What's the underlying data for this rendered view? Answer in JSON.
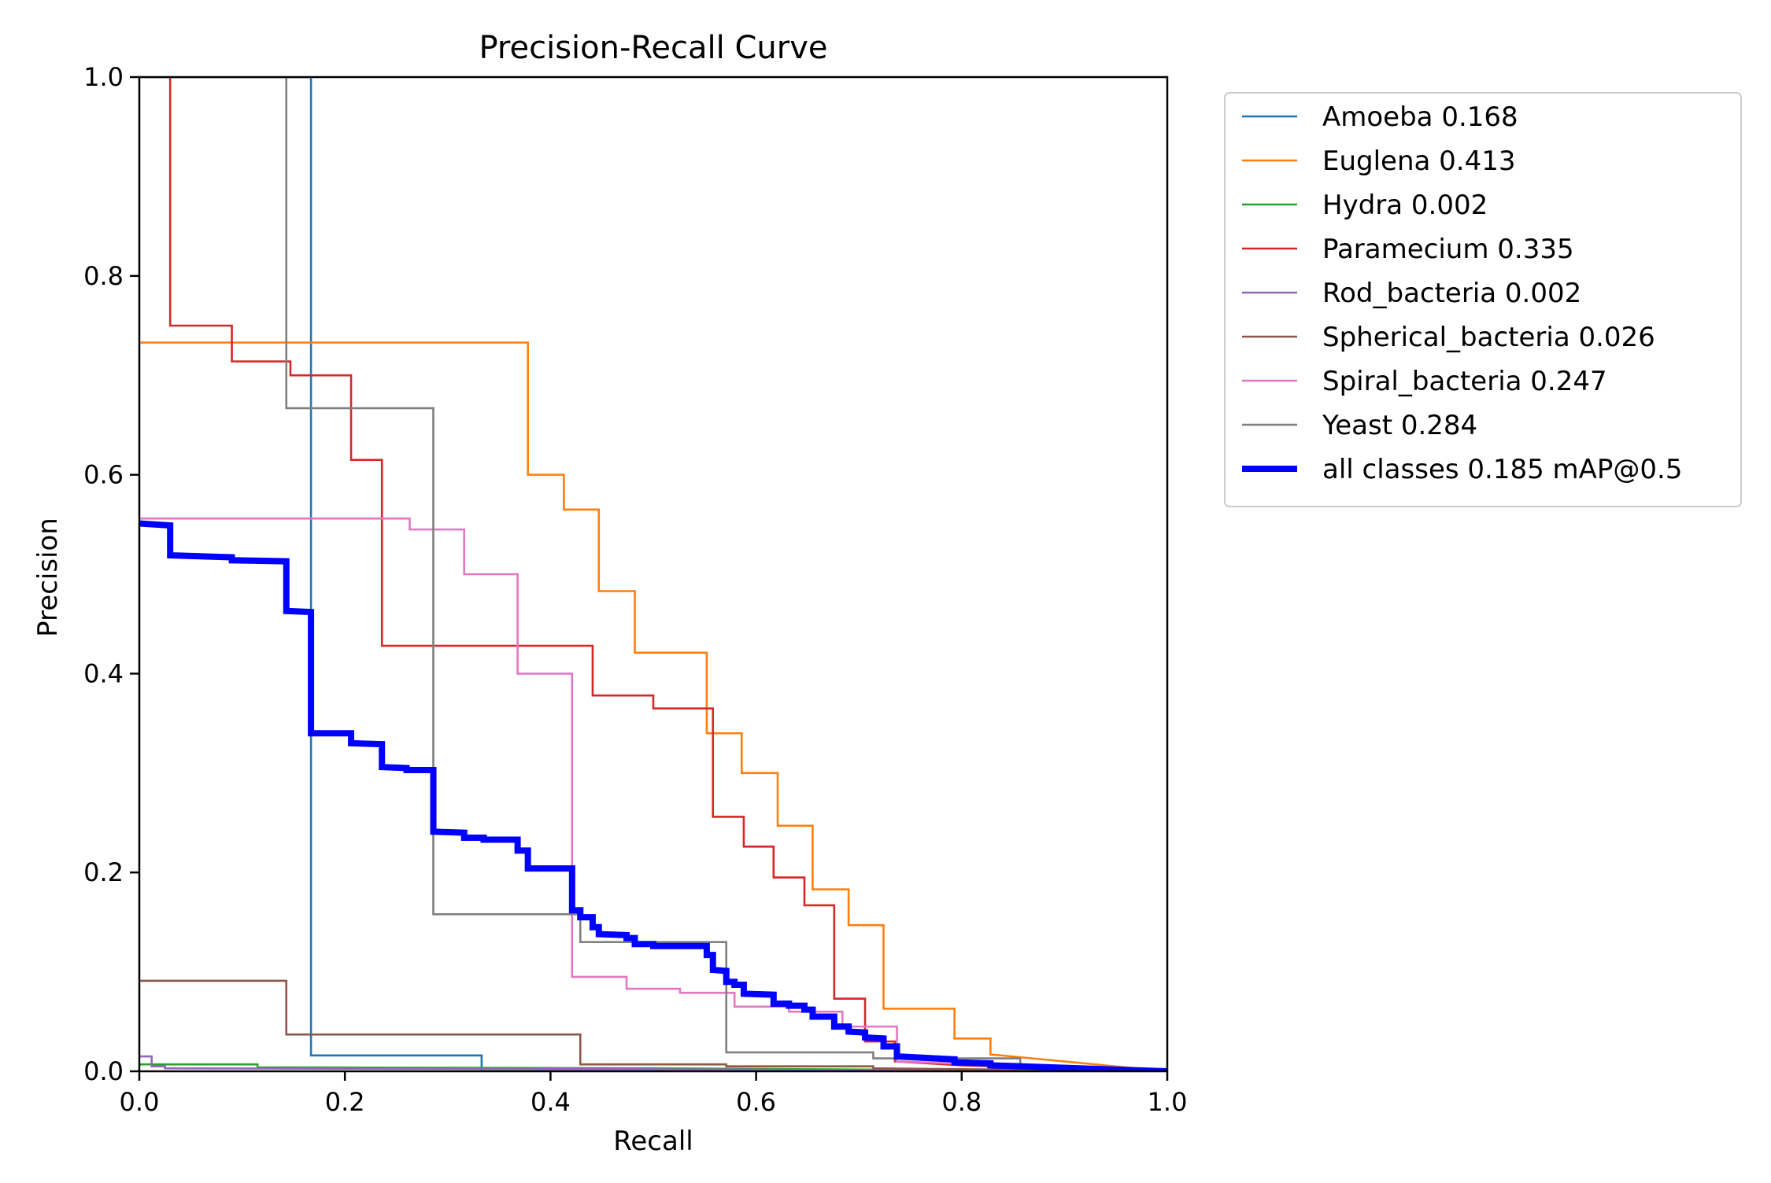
{
  "chart_data": {
    "type": "line",
    "title": "Precision-Recall Curve",
    "xlabel": "Recall",
    "ylabel": "Precision",
    "xlim": [
      0,
      1
    ],
    "ylim": [
      0,
      1
    ],
    "xticks": [
      "0.0",
      "0.2",
      "0.4",
      "0.6",
      "0.8",
      "1.0"
    ],
    "yticks": [
      "0.0",
      "0.2",
      "0.4",
      "0.6",
      "0.8",
      "1.0"
    ],
    "grid": false,
    "legend_position": "outside-top-right",
    "series": [
      {
        "name": "Amoeba 0.168",
        "color": "#1f77b4",
        "width": "thin",
        "points": [
          [
            0,
            1.0
          ],
          [
            0.167,
            1.0
          ],
          [
            0.167,
            0.016
          ],
          [
            0.333,
            0.016
          ],
          [
            0.333,
            0.0
          ],
          [
            1.0,
            0.0
          ]
        ]
      },
      {
        "name": "Euglena 0.413",
        "color": "#ff7f0e",
        "width": "thin",
        "points": [
          [
            0,
            0.733
          ],
          [
            0.378,
            0.733
          ],
          [
            0.378,
            0.6
          ],
          [
            0.413,
            0.6
          ],
          [
            0.413,
            0.565
          ],
          [
            0.447,
            0.565
          ],
          [
            0.447,
            0.483
          ],
          [
            0.482,
            0.483
          ],
          [
            0.482,
            0.421
          ],
          [
            0.552,
            0.421
          ],
          [
            0.552,
            0.34
          ],
          [
            0.586,
            0.34
          ],
          [
            0.586,
            0.3
          ],
          [
            0.621,
            0.3
          ],
          [
            0.621,
            0.247
          ],
          [
            0.655,
            0.247
          ],
          [
            0.655,
            0.183
          ],
          [
            0.69,
            0.183
          ],
          [
            0.69,
            0.147
          ],
          [
            0.724,
            0.147
          ],
          [
            0.724,
            0.063
          ],
          [
            0.793,
            0.063
          ],
          [
            0.793,
            0.033
          ],
          [
            0.828,
            0.033
          ],
          [
            0.828,
            0.017
          ],
          [
            1.0,
            0.0
          ]
        ]
      },
      {
        "name": "Hydra 0.002",
        "color": "#2ca02c",
        "width": "thin",
        "points": [
          [
            0,
            0.007
          ],
          [
            0.115,
            0.007
          ],
          [
            0.115,
            0.004
          ],
          [
            0.5,
            0.003
          ],
          [
            1.0,
            0.0
          ]
        ]
      },
      {
        "name": "Paramecium 0.335",
        "color": "#d62728",
        "width": "thin",
        "points": [
          [
            0.03,
            1.0
          ],
          [
            0.03,
            0.75
          ],
          [
            0.09,
            0.75
          ],
          [
            0.09,
            0.714
          ],
          [
            0.147,
            0.714
          ],
          [
            0.147,
            0.7
          ],
          [
            0.206,
            0.7
          ],
          [
            0.206,
            0.615
          ],
          [
            0.236,
            0.615
          ],
          [
            0.236,
            0.428
          ],
          [
            0.441,
            0.428
          ],
          [
            0.441,
            0.378
          ],
          [
            0.5,
            0.378
          ],
          [
            0.5,
            0.365
          ],
          [
            0.558,
            0.365
          ],
          [
            0.558,
            0.256
          ],
          [
            0.588,
            0.256
          ],
          [
            0.588,
            0.226
          ],
          [
            0.617,
            0.226
          ],
          [
            0.617,
            0.195
          ],
          [
            0.647,
            0.195
          ],
          [
            0.647,
            0.167
          ],
          [
            0.676,
            0.167
          ],
          [
            0.676,
            0.073
          ],
          [
            0.706,
            0.073
          ],
          [
            0.706,
            0.03
          ],
          [
            0.735,
            0.03
          ],
          [
            0.735,
            0.01
          ],
          [
            0.8,
            0.006
          ],
          [
            1.0,
            0.0
          ]
        ]
      },
      {
        "name": "Rod_bacteria 0.002",
        "color": "#9467bd",
        "width": "thin",
        "points": [
          [
            0,
            0.015
          ],
          [
            0.012,
            0.015
          ],
          [
            0.012,
            0.005
          ],
          [
            0.025,
            0.005
          ],
          [
            0.025,
            0.003
          ],
          [
            0.5,
            0.002
          ],
          [
            1.0,
            0.0
          ]
        ]
      },
      {
        "name": "Spherical_bacteria 0.026",
        "color": "#8c564b",
        "width": "thin",
        "points": [
          [
            0,
            0.091
          ],
          [
            0.143,
            0.091
          ],
          [
            0.143,
            0.037
          ],
          [
            0.429,
            0.037
          ],
          [
            0.429,
            0.007
          ],
          [
            0.571,
            0.007
          ],
          [
            0.571,
            0.005
          ],
          [
            0.714,
            0.005
          ],
          [
            0.714,
            0.003
          ],
          [
            1.0,
            0.0
          ]
        ]
      },
      {
        "name": "Spiral_bacteria 0.247",
        "color": "#e377c2",
        "width": "thin",
        "points": [
          [
            0,
            0.556
          ],
          [
            0.263,
            0.556
          ],
          [
            0.263,
            0.545
          ],
          [
            0.316,
            0.545
          ],
          [
            0.316,
            0.5
          ],
          [
            0.368,
            0.5
          ],
          [
            0.368,
            0.4
          ],
          [
            0.421,
            0.4
          ],
          [
            0.421,
            0.095
          ],
          [
            0.474,
            0.095
          ],
          [
            0.474,
            0.083
          ],
          [
            0.526,
            0.083
          ],
          [
            0.526,
            0.079
          ],
          [
            0.579,
            0.079
          ],
          [
            0.579,
            0.065
          ],
          [
            0.632,
            0.065
          ],
          [
            0.632,
            0.06
          ],
          [
            0.684,
            0.06
          ],
          [
            0.684,
            0.045
          ],
          [
            0.737,
            0.045
          ],
          [
            0.737,
            0.01
          ],
          [
            1.0,
            0.0
          ]
        ]
      },
      {
        "name": "Yeast 0.284",
        "color": "#7f7f7f",
        "width": "thin",
        "points": [
          [
            0.143,
            1.0
          ],
          [
            0.143,
            0.667
          ],
          [
            0.286,
            0.667
          ],
          [
            0.286,
            0.158
          ],
          [
            0.429,
            0.158
          ],
          [
            0.429,
            0.13
          ],
          [
            0.571,
            0.13
          ],
          [
            0.571,
            0.019
          ],
          [
            0.714,
            0.019
          ],
          [
            0.714,
            0.013
          ],
          [
            0.857,
            0.013
          ],
          [
            0.857,
            0.005
          ],
          [
            1.0,
            0.0
          ]
        ]
      },
      {
        "name": "all classes 0.185 mAP@0.5",
        "color": "#0000ff",
        "width": "thick",
        "points": [
          [
            0,
            0.551
          ],
          [
            0.03,
            0.549
          ],
          [
            0.03,
            0.519
          ],
          [
            0.09,
            0.517
          ],
          [
            0.09,
            0.514
          ],
          [
            0.143,
            0.513
          ],
          [
            0.143,
            0.463
          ],
          [
            0.167,
            0.462
          ],
          [
            0.167,
            0.34
          ],
          [
            0.206,
            0.34
          ],
          [
            0.206,
            0.33
          ],
          [
            0.236,
            0.329
          ],
          [
            0.236,
            0.306
          ],
          [
            0.26,
            0.305
          ],
          [
            0.26,
            0.303
          ],
          [
            0.286,
            0.303
          ],
          [
            0.286,
            0.241
          ],
          [
            0.316,
            0.24
          ],
          [
            0.316,
            0.235
          ],
          [
            0.335,
            0.235
          ],
          [
            0.335,
            0.233
          ],
          [
            0.368,
            0.233
          ],
          [
            0.368,
            0.222
          ],
          [
            0.378,
            0.222
          ],
          [
            0.378,
            0.204
          ],
          [
            0.421,
            0.204
          ],
          [
            0.421,
            0.162
          ],
          [
            0.429,
            0.162
          ],
          [
            0.429,
            0.155
          ],
          [
            0.441,
            0.155
          ],
          [
            0.441,
            0.145
          ],
          [
            0.447,
            0.145
          ],
          [
            0.447,
            0.138
          ],
          [
            0.474,
            0.137
          ],
          [
            0.474,
            0.134
          ],
          [
            0.482,
            0.134
          ],
          [
            0.482,
            0.128
          ],
          [
            0.5,
            0.128
          ],
          [
            0.5,
            0.126
          ],
          [
            0.552,
            0.126
          ],
          [
            0.552,
            0.117
          ],
          [
            0.558,
            0.117
          ],
          [
            0.558,
            0.102
          ],
          [
            0.571,
            0.101
          ],
          [
            0.571,
            0.09
          ],
          [
            0.579,
            0.09
          ],
          [
            0.579,
            0.087
          ],
          [
            0.588,
            0.087
          ],
          [
            0.588,
            0.078
          ],
          [
            0.617,
            0.077
          ],
          [
            0.617,
            0.068
          ],
          [
            0.632,
            0.068
          ],
          [
            0.632,
            0.066
          ],
          [
            0.647,
            0.066
          ],
          [
            0.647,
            0.062
          ],
          [
            0.655,
            0.062
          ],
          [
            0.655,
            0.055
          ],
          [
            0.676,
            0.055
          ],
          [
            0.676,
            0.045
          ],
          [
            0.69,
            0.045
          ],
          [
            0.69,
            0.04
          ],
          [
            0.706,
            0.039
          ],
          [
            0.706,
            0.034
          ],
          [
            0.724,
            0.033
          ],
          [
            0.724,
            0.025
          ],
          [
            0.737,
            0.025
          ],
          [
            0.737,
            0.015
          ],
          [
            0.793,
            0.012
          ],
          [
            0.793,
            0.009
          ],
          [
            0.828,
            0.008
          ],
          [
            0.828,
            0.006
          ],
          [
            0.857,
            0.005
          ],
          [
            1.0,
            0.0
          ]
        ]
      }
    ]
  }
}
